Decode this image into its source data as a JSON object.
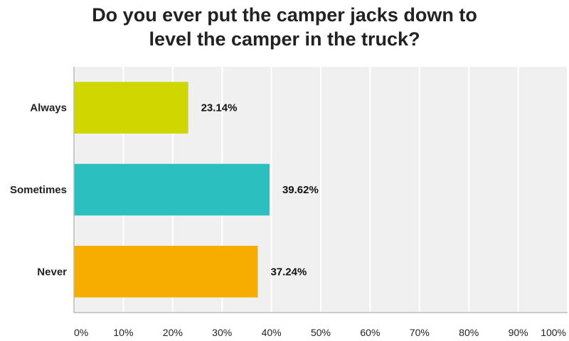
{
  "chart_data": {
    "type": "bar",
    "orientation": "horizontal",
    "title_lines": [
      "Do you ever put the camper jacks down to",
      "level the camper in the truck?"
    ],
    "categories": [
      "Always",
      "Sometimes",
      "Never"
    ],
    "values": [
      23.14,
      39.62,
      37.24
    ],
    "value_labels": [
      "23.14%",
      "39.62%",
      "37.24%"
    ],
    "colors": [
      "#cfd600",
      "#2bbfbf",
      "#f7ad00"
    ],
    "xlim": [
      0,
      100
    ],
    "xticks": [
      0,
      10,
      20,
      30,
      40,
      50,
      60,
      70,
      80,
      90,
      100
    ],
    "xtick_labels": [
      "0%",
      "10%",
      "20%",
      "30%",
      "40%",
      "50%",
      "60%",
      "70%",
      "80%",
      "90%",
      "100%"
    ],
    "grid": true,
    "plot_background": "#f0f0f0",
    "grid_color": "#ffffff",
    "axis_color": "#bbbbbb"
  }
}
